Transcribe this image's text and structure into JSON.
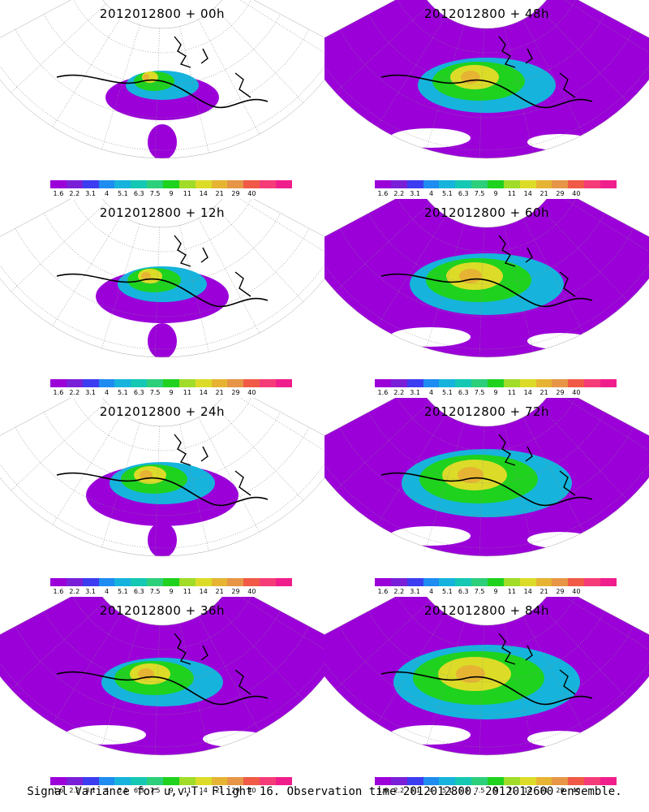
{
  "panels": [
    {
      "title": "2012012800 + 00h",
      "level": 0
    },
    {
      "title": "2012012800 + 48h",
      "level": 4
    },
    {
      "title": "2012012800 + 12h",
      "level": 1
    },
    {
      "title": "2012012800 + 60h",
      "level": 5
    },
    {
      "title": "2012012800 + 24h",
      "level": 2
    },
    {
      "title": "2012012800 + 72h",
      "level": 6
    },
    {
      "title": "2012012800 + 36h",
      "level": 3
    },
    {
      "title": "2012012800 + 84h",
      "level": 7
    }
  ],
  "colorbar": {
    "labels": [
      "1.6",
      "2.2",
      "3.1",
      "4",
      "5.1",
      "6.3",
      "7.5",
      "9",
      "11",
      "14",
      "21",
      "29",
      "40"
    ],
    "colors": [
      "#9b00d9",
      "#7a1fd8",
      "#3c3cf0",
      "#1e8cf0",
      "#16b4dc",
      "#14c8b4",
      "#2ccf7a",
      "#1ed21e",
      "#a0dc28",
      "#dcdc28",
      "#e6b432",
      "#e69646",
      "#f05a46",
      "#f53c78",
      "#f01e8c"
    ]
  },
  "caption": "Signal Variance for u,v,T. Flight 16. Observation time 2012012800. 2012012600 ensemble."
}
